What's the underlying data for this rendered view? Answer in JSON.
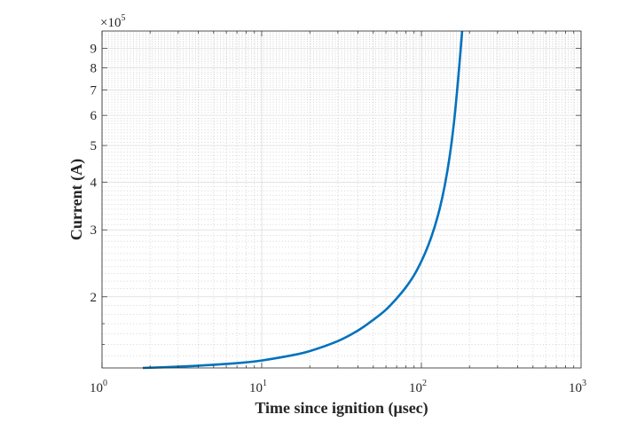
{
  "chart_data": {
    "type": "line",
    "xlabel": "Time since ignition (μsec)",
    "ylabel": "Current (A)",
    "x_scale": "log",
    "y_scale": "log",
    "xlim": [
      1,
      1000
    ],
    "ylim": [
      130000,
      1000000
    ],
    "y_exponent_label": "×10",
    "y_exponent_power": "5",
    "x_ticks": [
      {
        "base": "10",
        "power": "0",
        "value": 1
      },
      {
        "base": "10",
        "power": "1",
        "value": 10
      },
      {
        "base": "10",
        "power": "2",
        "value": 100
      },
      {
        "base": "10",
        "power": "3",
        "value": 1000
      }
    ],
    "y_ticks": [
      {
        "label": "2",
        "value": 200000
      },
      {
        "label": "3",
        "value": 300000
      },
      {
        "label": "4",
        "value": 400000
      },
      {
        "label": "5",
        "value": 500000
      },
      {
        "label": "6",
        "value": 600000
      },
      {
        "label": "7",
        "value": 700000
      },
      {
        "label": "8",
        "value": 800000
      },
      {
        "label": "9",
        "value": 900000
      }
    ],
    "grid": true,
    "minor_grid": true,
    "series": [
      {
        "color": "#0072BD",
        "x": [
          1.8,
          3,
          5,
          8,
          10,
          15,
          20,
          30,
          40,
          50,
          60,
          70,
          80,
          90,
          100,
          110,
          120,
          130,
          140,
          150,
          160,
          170,
          180
        ],
        "y": [
          130000,
          131000,
          132500,
          134500,
          136000,
          140000,
          144000,
          153000,
          163000,
          174000,
          185000,
          198000,
          212000,
          228000,
          248000,
          272000,
          302000,
          340000,
          392000,
          465000,
          575000,
          750000,
          1000000
        ]
      }
    ]
  }
}
